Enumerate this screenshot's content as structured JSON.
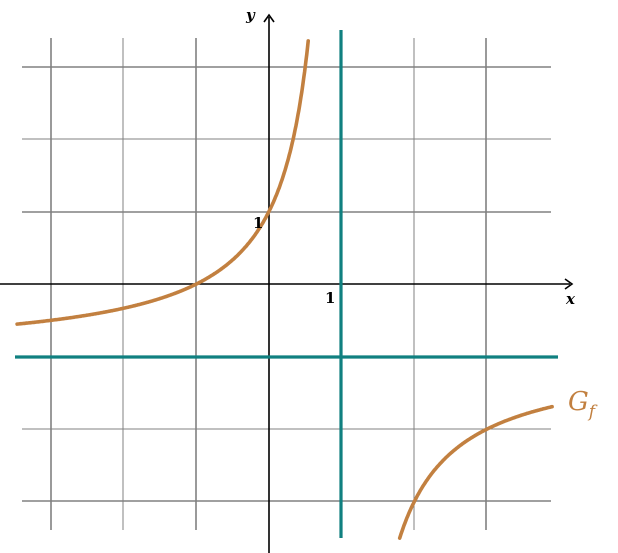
{
  "diagram": {
    "type": "function-graph",
    "axes": {
      "x_label": "x",
      "y_label": "y",
      "x_tick_label": "1",
      "y_tick_label": "1"
    },
    "function_label": "G",
    "function_label_sub": "f",
    "colors": {
      "curve": "#c28040",
      "asymptote": "#108080",
      "grid": "#808080",
      "axis": "#000000"
    },
    "asymptotes": {
      "vertical_x": 1,
      "horizontal_y": -1
    },
    "grid": {
      "x_range": [
        -3,
        4
      ],
      "y_range": [
        -3,
        3
      ],
      "unit": 1
    },
    "curve_points": {
      "through": [
        [
          -1,
          0
        ],
        [
          0,
          1
        ]
      ]
    }
  }
}
